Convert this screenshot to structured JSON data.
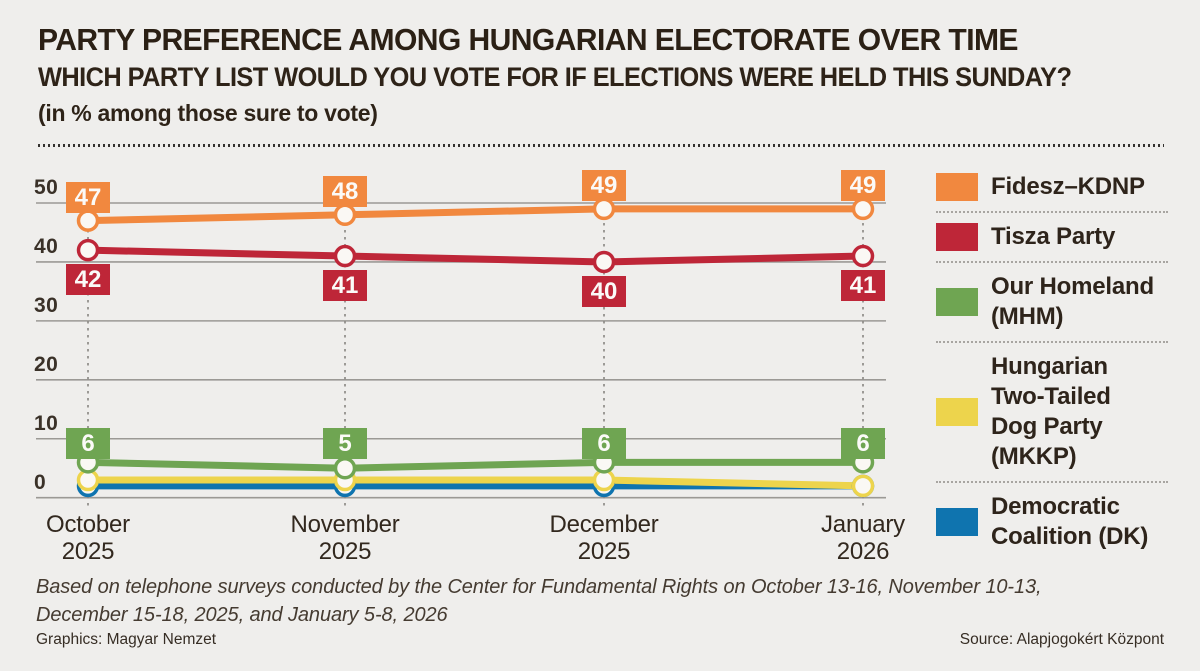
{
  "header": {
    "title": "PARTY PREFERENCE AMONG HUNGARIAN ELECTORATE OVER TIME",
    "subtitle": "WHICH PARTY LIST WOULD YOU VOTE FOR IF ELECTIONS WERE HELD THIS SUNDAY?",
    "unit_note": "(in % among those sure to vote)"
  },
  "chart_data": {
    "type": "line",
    "title": "PARTY PREFERENCE AMONG HUNGARIAN ELECTORATE OVER TIME",
    "ylabel": "% among those sure to vote",
    "categories": [
      "October\n2025",
      "November\n2025",
      "December\n2025",
      "January\n2026"
    ],
    "y_ticks": [
      0,
      10,
      20,
      30,
      40,
      50
    ],
    "ylim": [
      0,
      53
    ],
    "grid": true,
    "legend_position": "right",
    "series": [
      {
        "name": "Fidesz–KDNP",
        "color": "#F1883F",
        "values": [
          47,
          48,
          49,
          49
        ],
        "value_labels": "above"
      },
      {
        "name": "Tisza Party",
        "color": "#BE2638",
        "values": [
          42,
          41,
          40,
          41
        ],
        "value_labels": "below"
      },
      {
        "name": "Our Homeland (MHM)",
        "color": "#6FA552",
        "values": [
          6,
          5,
          6,
          6
        ],
        "value_labels": "row"
      },
      {
        "name": "Hungarian Two-Tailed Dog Party (MKKP)",
        "color": "#EDD44C",
        "values": [
          3,
          3,
          3,
          2
        ],
        "value_labels": "none"
      },
      {
        "name": "Democratic Coalition (DK)",
        "color": "#0F74AF",
        "values": [
          2,
          2,
          2,
          2
        ],
        "value_labels": "none"
      }
    ]
  },
  "legend": {
    "items": [
      {
        "label": "Fidesz–KDNP",
        "color": "#F1883F"
      },
      {
        "label": "Tisza Party",
        "color": "#BE2638"
      },
      {
        "label": "Our Homeland\n(MHM)",
        "color": "#6FA552"
      },
      {
        "label": "Hungarian\nTwo-Tailed\nDog Party\n(MKKP)",
        "color": "#EDD44C"
      },
      {
        "label": "Democratic\nCoalition (DK)",
        "color": "#0F74AF"
      }
    ]
  },
  "footer": {
    "note": "Based on telephone surveys conducted by the Center for Fundamental Rights on October 13-16, November 10-13, December 15-18, 2025, and January 5-8, 2026",
    "credit_left": "Graphics: Magyar Nemzet",
    "credit_right": "Source: Alapjogokért Központ"
  },
  "colors": {
    "background": "#EFEEEC",
    "gridline": "#9B9995",
    "guide_dots": "#8E8B87",
    "marker_fill": "#FAF8F4",
    "text": "#2E241B"
  }
}
